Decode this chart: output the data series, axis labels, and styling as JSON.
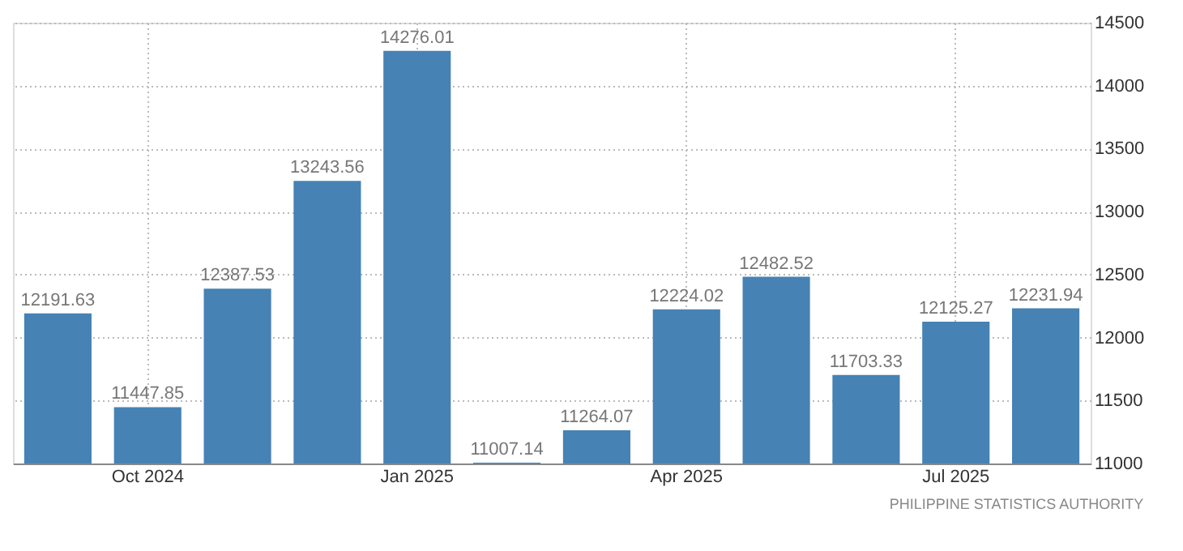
{
  "chart_data": {
    "type": "bar",
    "categories": [
      null,
      "Oct 2024",
      null,
      null,
      "Jan 2025",
      null,
      null,
      "Apr 2025",
      null,
      null,
      "Jul 2025",
      null
    ],
    "values": [
      12191.63,
      11447.85,
      12387.53,
      13243.56,
      14276.01,
      11007.14,
      11264.07,
      12224.02,
      12482.52,
      11703.33,
      12125.27,
      12231.94
    ],
    "color": "#4682b4",
    "ylim": [
      11000,
      14500
    ],
    "yticks": [
      11000,
      11500,
      12000,
      12500,
      13000,
      13500,
      14000,
      14500
    ],
    "grid": true,
    "data_labels": true,
    "annotations": [
      "PHILIPPINE STATISTICS AUTHORITY"
    ]
  }
}
